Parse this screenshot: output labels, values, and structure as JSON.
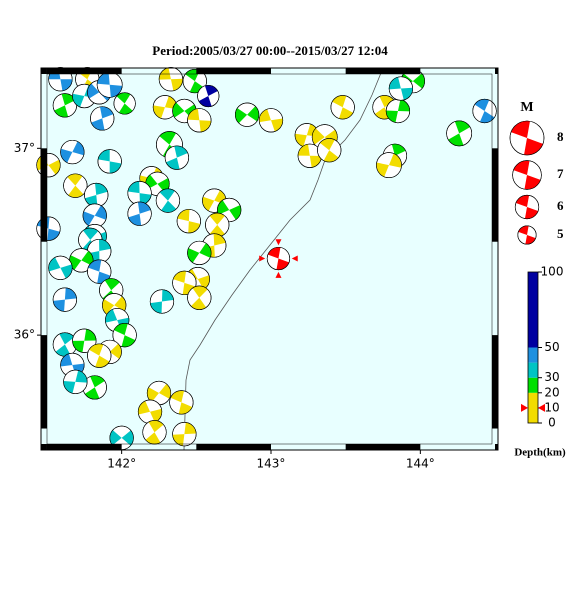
{
  "map": {
    "title": "Period:2005/03/27 00:00--2015/03/27 12:04",
    "xlim": [
      141.46,
      144.52
    ],
    "ylim": [
      35.385,
      37.43
    ],
    "xticks": [
      {
        "value": 142,
        "label": "142°"
      },
      {
        "value": 143,
        "label": "143°"
      },
      {
        "value": 144,
        "label": "144°"
      }
    ],
    "yticks": [
      {
        "value": 36,
        "label": "36°"
      },
      {
        "value": 37,
        "label": "37°"
      }
    ],
    "depth_scale": [
      {
        "from": 0,
        "to": 20,
        "color": "#f2dc00"
      },
      {
        "from": 20,
        "to": 30,
        "color": "#00e000"
      },
      {
        "from": 30,
        "to": 40,
        "color": "#00c4c4"
      },
      {
        "from": 40,
        "to": 50,
        "color": "#1e90e0"
      },
      {
        "from": 50,
        "to": 100,
        "color": "#0000a0"
      }
    ],
    "depth_ticks": [
      0,
      10,
      20,
      30,
      50,
      100
    ],
    "depth_title": "Depth(km)",
    "magnitude_title": "M",
    "magnitudes": [
      8,
      7,
      6,
      5
    ],
    "main_event": {
      "lon": 143.05,
      "lat": 36.41,
      "depth": 10,
      "mag": 5.8,
      "color": "#ff0000"
    },
    "events": [
      {
        "lon": 141.59,
        "lat": 37.37,
        "depth": 45,
        "mag": 6
      },
      {
        "lon": 141.77,
        "lat": 37.37,
        "depth": 10,
        "mag": 6
      },
      {
        "lon": 141.62,
        "lat": 37.23,
        "depth": 25,
        "mag": 6
      },
      {
        "lon": 141.75,
        "lat": 37.28,
        "depth": 35,
        "mag": 6
      },
      {
        "lon": 141.85,
        "lat": 37.3,
        "depth": 45,
        "mag": 6
      },
      {
        "lon": 141.92,
        "lat": 37.34,
        "depth": 45,
        "mag": 6.3
      },
      {
        "lon": 142.02,
        "lat": 37.24,
        "depth": 25,
        "mag": 5.6
      },
      {
        "lon": 141.87,
        "lat": 37.16,
        "depth": 45,
        "mag": 6
      },
      {
        "lon": 141.67,
        "lat": 36.98,
        "depth": 45,
        "mag": 6
      },
      {
        "lon": 141.51,
        "lat": 36.91,
        "depth": 10,
        "mag": 6
      },
      {
        "lon": 141.92,
        "lat": 36.93,
        "depth": 35,
        "mag": 6
      },
      {
        "lon": 141.69,
        "lat": 36.8,
        "depth": 10,
        "mag": 6
      },
      {
        "lon": 141.83,
        "lat": 36.75,
        "depth": 35,
        "mag": 6
      },
      {
        "lon": 141.82,
        "lat": 36.64,
        "depth": 45,
        "mag": 6
      },
      {
        "lon": 141.82,
        "lat": 36.53,
        "depth": 35,
        "mag": 6
      },
      {
        "lon": 141.51,
        "lat": 36.57,
        "depth": 45,
        "mag": 6
      },
      {
        "lon": 141.79,
        "lat": 36.51,
        "depth": 35,
        "mag": 6
      },
      {
        "lon": 141.85,
        "lat": 36.45,
        "depth": 35,
        "mag": 6
      },
      {
        "lon": 141.73,
        "lat": 36.4,
        "depth": 25,
        "mag": 6
      },
      {
        "lon": 141.59,
        "lat": 36.36,
        "depth": 35,
        "mag": 6
      },
      {
        "lon": 141.85,
        "lat": 36.34,
        "depth": 45,
        "mag": 6
      },
      {
        "lon": 141.93,
        "lat": 36.24,
        "depth": 25,
        "mag": 6
      },
      {
        "lon": 141.62,
        "lat": 36.19,
        "depth": 45,
        "mag": 6
      },
      {
        "lon": 141.95,
        "lat": 36.16,
        "depth": 10,
        "mag": 6
      },
      {
        "lon": 141.97,
        "lat": 36.08,
        "depth": 35,
        "mag": 6
      },
      {
        "lon": 142.02,
        "lat": 36.0,
        "depth": 25,
        "mag": 6
      },
      {
        "lon": 141.62,
        "lat": 35.95,
        "depth": 35,
        "mag": 6
      },
      {
        "lon": 141.75,
        "lat": 35.97,
        "depth": 25,
        "mag": 6
      },
      {
        "lon": 141.92,
        "lat": 35.91,
        "depth": 10,
        "mag": 6
      },
      {
        "lon": 141.67,
        "lat": 35.84,
        "depth": 45,
        "mag": 6
      },
      {
        "lon": 141.85,
        "lat": 35.89,
        "depth": 10,
        "mag": 6
      },
      {
        "lon": 141.82,
        "lat": 35.72,
        "depth": 25,
        "mag": 6
      },
      {
        "lon": 141.69,
        "lat": 35.75,
        "depth": 35,
        "mag": 6
      },
      {
        "lon": 142.0,
        "lat": 35.45,
        "depth": 35,
        "mag": 6
      },
      {
        "lon": 142.33,
        "lat": 37.37,
        "depth": 10,
        "mag": 6
      },
      {
        "lon": 142.49,
        "lat": 37.36,
        "depth": 25,
        "mag": 6
      },
      {
        "lon": 142.58,
        "lat": 37.28,
        "depth": 60,
        "mag": 5.6
      },
      {
        "lon": 142.29,
        "lat": 37.22,
        "depth": 10,
        "mag": 6
      },
      {
        "lon": 142.42,
        "lat": 37.2,
        "depth": 25,
        "mag": 6
      },
      {
        "lon": 142.52,
        "lat": 37.15,
        "depth": 10,
        "mag": 6
      },
      {
        "lon": 142.32,
        "lat": 37.02,
        "depth": 25,
        "mag": 6.5
      },
      {
        "lon": 142.37,
        "lat": 36.95,
        "depth": 35,
        "mag": 6
      },
      {
        "lon": 142.2,
        "lat": 36.84,
        "depth": 10,
        "mag": 6
      },
      {
        "lon": 142.24,
        "lat": 36.81,
        "depth": 25,
        "mag": 6
      },
      {
        "lon": 142.12,
        "lat": 36.76,
        "depth": 35,
        "mag": 6
      },
      {
        "lon": 142.31,
        "lat": 36.72,
        "depth": 35,
        "mag": 6
      },
      {
        "lon": 142.12,
        "lat": 36.65,
        "depth": 45,
        "mag": 6
      },
      {
        "lon": 142.62,
        "lat": 36.72,
        "depth": 10,
        "mag": 6
      },
      {
        "lon": 142.72,
        "lat": 36.67,
        "depth": 25,
        "mag": 6
      },
      {
        "lon": 142.45,
        "lat": 36.61,
        "depth": 10,
        "mag": 6
      },
      {
        "lon": 142.64,
        "lat": 36.59,
        "depth": 10,
        "mag": 6
      },
      {
        "lon": 142.62,
        "lat": 36.48,
        "depth": 10,
        "mag": 6
      },
      {
        "lon": 142.52,
        "lat": 36.44,
        "depth": 25,
        "mag": 6
      },
      {
        "lon": 142.51,
        "lat": 36.3,
        "depth": 10,
        "mag": 6
      },
      {
        "lon": 142.42,
        "lat": 36.28,
        "depth": 10,
        "mag": 6
      },
      {
        "lon": 142.52,
        "lat": 36.2,
        "depth": 10,
        "mag": 6
      },
      {
        "lon": 142.27,
        "lat": 36.18,
        "depth": 35,
        "mag": 6
      },
      {
        "lon": 142.25,
        "lat": 35.69,
        "depth": 10,
        "mag": 6
      },
      {
        "lon": 142.19,
        "lat": 35.59,
        "depth": 10,
        "mag": 6
      },
      {
        "lon": 142.4,
        "lat": 35.64,
        "depth": 10,
        "mag": 6
      },
      {
        "lon": 142.22,
        "lat": 35.48,
        "depth": 10,
        "mag": 6
      },
      {
        "lon": 142.42,
        "lat": 35.47,
        "depth": 10,
        "mag": 6
      },
      {
        "lon": 142.84,
        "lat": 37.18,
        "depth": 25,
        "mag": 6
      },
      {
        "lon": 143.0,
        "lat": 37.15,
        "depth": 10,
        "mag": 6
      },
      {
        "lon": 143.48,
        "lat": 37.22,
        "depth": 10,
        "mag": 6
      },
      {
        "lon": 143.76,
        "lat": 37.22,
        "depth": 10,
        "mag": 6
      },
      {
        "lon": 143.85,
        "lat": 37.2,
        "depth": 25,
        "mag": 6
      },
      {
        "lon": 143.95,
        "lat": 37.36,
        "depth": 25,
        "mag": 6
      },
      {
        "lon": 143.87,
        "lat": 37.32,
        "depth": 35,
        "mag": 6
      },
      {
        "lon": 144.43,
        "lat": 37.2,
        "depth": 45,
        "mag": 6
      },
      {
        "lon": 144.26,
        "lat": 37.08,
        "depth": 25,
        "mag": 6.3
      },
      {
        "lon": 143.24,
        "lat": 37.07,
        "depth": 10,
        "mag": 6
      },
      {
        "lon": 143.36,
        "lat": 37.06,
        "depth": 10,
        "mag": 6.3
      },
      {
        "lon": 143.26,
        "lat": 36.96,
        "depth": 10,
        "mag": 6
      },
      {
        "lon": 143.39,
        "lat": 36.99,
        "depth": 10,
        "mag": 6
      },
      {
        "lon": 143.83,
        "lat": 36.96,
        "depth": 25,
        "mag": 6
      },
      {
        "lon": 143.79,
        "lat": 36.91,
        "depth": 10,
        "mag": 6.3
      }
    ]
  }
}
